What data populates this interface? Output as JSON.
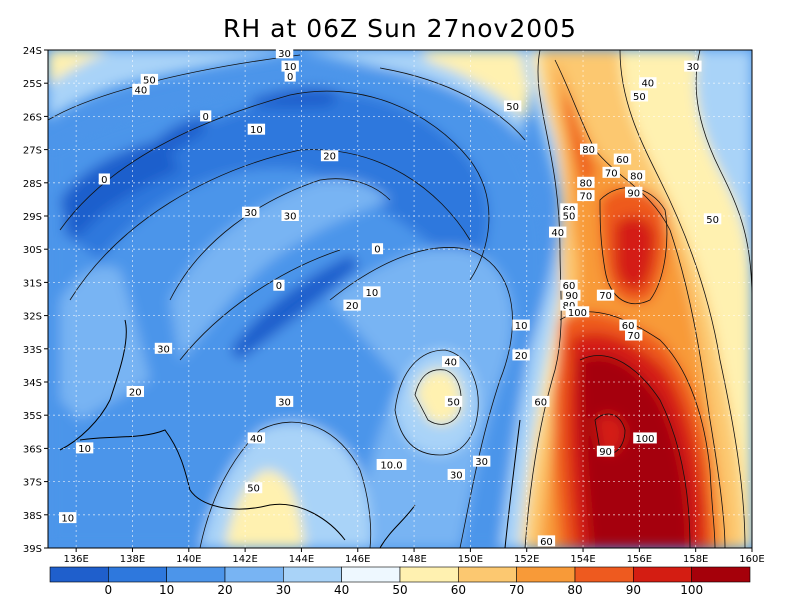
{
  "title": "RH at 06Z Sun 27nov2005",
  "map_data": {
    "type": "contour_map",
    "variable": "RH",
    "lon_range": [
      135,
      160
    ],
    "lat_range": [
      -39,
      -24
    ],
    "lon_ticks": [
      "136E",
      "138E",
      "140E",
      "142E",
      "144E",
      "146E",
      "148E",
      "150E",
      "152E",
      "154E",
      "156E",
      "158E",
      "160E"
    ],
    "lat_ticks": [
      "24S",
      "25S",
      "26S",
      "27S",
      "28S",
      "29S",
      "30S",
      "31S",
      "32S",
      "33S",
      "34S",
      "35S",
      "36S",
      "37S",
      "38S",
      "39S"
    ],
    "grid": true,
    "colorbar": {
      "labels": [
        "0",
        "10",
        "20",
        "30",
        "40",
        "50",
        "60",
        "70",
        "80",
        "90",
        "100"
      ],
      "colors": [
        "#1f5fcc",
        "#2e78dd",
        "#4c95ea",
        "#78b4f3",
        "#a9d3f8",
        "#eef8ff",
        "#fff1b0",
        "#fcc870",
        "#f89a38",
        "#ee5a1f",
        "#d41d12",
        "#a5000a"
      ]
    },
    "contour_labels": [
      {
        "text": "30",
        "lon": 143.4,
        "lat": -24.1
      },
      {
        "text": "10",
        "lon": 143.6,
        "lat": -24.5
      },
      {
        "text": "0",
        "lon": 143.6,
        "lat": -24.8
      },
      {
        "text": "50",
        "lon": 138.6,
        "lat": -24.9
      },
      {
        "text": "40",
        "lon": 138.3,
        "lat": -25.2
      },
      {
        "text": "30",
        "lon": 157.9,
        "lat": -24.5
      },
      {
        "text": "40",
        "lon": 156.3,
        "lat": -25.0
      },
      {
        "text": "50",
        "lon": 156.0,
        "lat": -25.4
      },
      {
        "text": "50",
        "lon": 151.5,
        "lat": -25.7
      },
      {
        "text": "0",
        "lon": 140.6,
        "lat": -26.0
      },
      {
        "text": "10",
        "lon": 142.4,
        "lat": -26.4
      },
      {
        "text": "80",
        "lon": 154.2,
        "lat": -27.0
      },
      {
        "text": "60",
        "lon": 155.4,
        "lat": -27.3
      },
      {
        "text": "20",
        "lon": 145.0,
        "lat": -27.2
      },
      {
        "text": "70",
        "lon": 155.0,
        "lat": -27.7
      },
      {
        "text": "80",
        "lon": 155.9,
        "lat": -27.8
      },
      {
        "text": "0",
        "lon": 137.0,
        "lat": -27.9
      },
      {
        "text": "80",
        "lon": 154.1,
        "lat": -28.0
      },
      {
        "text": "90",
        "lon": 155.8,
        "lat": -28.3
      },
      {
        "text": "70",
        "lon": 154.1,
        "lat": -28.4
      },
      {
        "text": "60",
        "lon": 153.5,
        "lat": -28.8
      },
      {
        "text": "50",
        "lon": 153.5,
        "lat": -29.0
      },
      {
        "text": "30",
        "lon": 142.2,
        "lat": -28.9
      },
      {
        "text": "30",
        "lon": 143.6,
        "lat": -29.0
      },
      {
        "text": "50",
        "lon": 158.6,
        "lat": -29.1
      },
      {
        "text": "40",
        "lon": 153.1,
        "lat": -29.5
      },
      {
        "text": "0",
        "lon": 146.7,
        "lat": -30.0
      },
      {
        "text": "0",
        "lon": 143.2,
        "lat": -31.1
      },
      {
        "text": "10",
        "lon": 146.5,
        "lat": -31.3
      },
      {
        "text": "60",
        "lon": 153.5,
        "lat": -31.1
      },
      {
        "text": "90",
        "lon": 153.6,
        "lat": -31.4
      },
      {
        "text": "70",
        "lon": 154.8,
        "lat": -31.4
      },
      {
        "text": "20",
        "lon": 145.8,
        "lat": -31.7
      },
      {
        "text": "80",
        "lon": 153.5,
        "lat": -31.7
      },
      {
        "text": "100",
        "lon": 153.8,
        "lat": -31.9
      },
      {
        "text": "60",
        "lon": 155.6,
        "lat": -32.3
      },
      {
        "text": "70",
        "lon": 155.8,
        "lat": -32.6
      },
      {
        "text": "10",
        "lon": 151.8,
        "lat": -32.3
      },
      {
        "text": "30",
        "lon": 139.1,
        "lat": -33.0
      },
      {
        "text": "20",
        "lon": 151.8,
        "lat": -33.2
      },
      {
        "text": "40",
        "lon": 149.3,
        "lat": -33.4
      },
      {
        "text": "20",
        "lon": 138.1,
        "lat": -34.3
      },
      {
        "text": "50",
        "lon": 149.4,
        "lat": -34.6
      },
      {
        "text": "30",
        "lon": 143.4,
        "lat": -34.6
      },
      {
        "text": "60",
        "lon": 152.5,
        "lat": -34.6
      },
      {
        "text": "40",
        "lon": 142.4,
        "lat": -35.7
      },
      {
        "text": "10",
        "lon": 136.3,
        "lat": -36.0
      },
      {
        "text": "100",
        "lon": 156.2,
        "lat": -35.7
      },
      {
        "text": "90",
        "lon": 154.8,
        "lat": -36.1
      },
      {
        "text": "10.0",
        "lon": 147.2,
        "lat": -36.5
      },
      {
        "text": "30",
        "lon": 150.4,
        "lat": -36.4
      },
      {
        "text": "30",
        "lon": 149.5,
        "lat": -36.8
      },
      {
        "text": "50",
        "lon": 142.3,
        "lat": -37.2
      },
      {
        "text": "10",
        "lon": 135.7,
        "lat": -38.1
      },
      {
        "text": "60",
        "lon": 152.7,
        "lat": -38.8
      }
    ]
  }
}
